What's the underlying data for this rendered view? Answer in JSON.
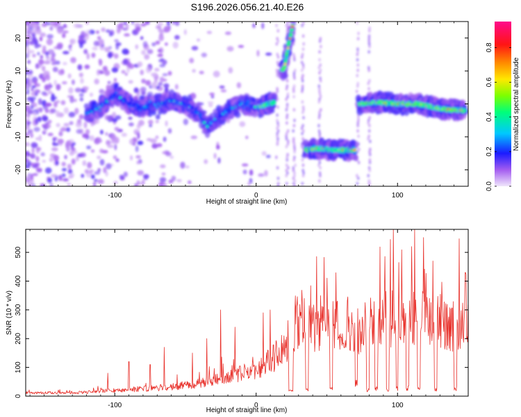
{
  "title": "S196.2026.056.21.40.E26",
  "chart_data": [
    {
      "type": "heatmap",
      "name": "spectrogram",
      "xlabel": "Height of straight line (km)",
      "ylabel": "Frequency (Hz)",
      "xlim": [
        -163,
        150
      ],
      "ylim": [
        -25,
        25
      ],
      "xticks": [
        -100,
        0,
        100
      ],
      "yticks": [
        -20,
        -10,
        0,
        10,
        20
      ],
      "colorbar": {
        "label": "Normalized spectral amplitude",
        "range": [
          0.0,
          0.95
        ],
        "ticks": [
          0.0,
          0.2,
          0.4,
          0.6,
          0.8
        ],
        "tick_labels": [
          "0.0",
          "0.2",
          "0.4",
          "0.6",
          "0.8"
        ],
        "colormap": "rainbow",
        "low_color": "#f0e6fb",
        "high_color": "#ff0a8c"
      },
      "ridges": [
        {
          "x": [
            -120,
            -110,
            -100,
            -90,
            -80,
            -70,
            -60,
            -50,
            -40,
            -35,
            -30,
            -20,
            -10,
            0
          ],
          "freq": [
            -3,
            -1,
            3,
            0,
            -1,
            0,
            1,
            0,
            -3,
            -7,
            -5,
            -2,
            0,
            -1
          ],
          "peak": 0.42
        },
        {
          "x": [
            2,
            8,
            13
          ],
          "freq": [
            -1,
            0,
            0.5
          ],
          "peak": 0.8
        },
        {
          "x": [
            18,
            20,
            23,
            26
          ],
          "freq": [
            10,
            11,
            18,
            24
          ],
          "peak": 0.9
        },
        {
          "x": [
            35,
            45,
            55,
            70
          ],
          "freq": [
            -14,
            -13.5,
            -14,
            -14
          ],
          "peak": 0.82
        },
        {
          "x": [
            73,
            85,
            100,
            115,
            130,
            148
          ],
          "freq": [
            0,
            0.5,
            0,
            0,
            -1.5,
            -2
          ],
          "peak": 0.9
        }
      ],
      "vertical_streaks_x": [
        15,
        22,
        27,
        33,
        45,
        72,
        80
      ],
      "noise_region_x": [
        -163,
        -60
      ]
    },
    {
      "type": "line",
      "name": "snr",
      "xlabel": "Height of straight line (km)",
      "ylabel": "SNR (10 * v/v)",
      "xlim": [
        -163,
        150
      ],
      "ylim": [
        0,
        580
      ],
      "xticks": [
        -100,
        0,
        100
      ],
      "yticks": [
        0,
        100,
        200,
        300,
        400,
        500
      ],
      "color": "#e8302a",
      "sample_step_km": 0.35,
      "envelope": {
        "x": [
          -163,
          -120,
          -100,
          -80,
          -60,
          -40,
          -20,
          0,
          10,
          20,
          25,
          30,
          40,
          60,
          70,
          75,
          80,
          100,
          120,
          140,
          150
        ],
        "y": [
          15,
          18,
          28,
          35,
          45,
          60,
          90,
          130,
          170,
          230,
          300,
          360,
          330,
          380,
          330,
          310,
          350,
          380,
          360,
          340,
          360
        ]
      },
      "spikes": [
        {
          "x": -105,
          "y": 80
        },
        {
          "x": -90,
          "y": 120
        },
        {
          "x": -75,
          "y": 110
        },
        {
          "x": -65,
          "y": 170
        },
        {
          "x": -45,
          "y": 150
        },
        {
          "x": -35,
          "y": 200
        },
        {
          "x": -25,
          "y": 300
        },
        {
          "x": -15,
          "y": 240
        },
        {
          "x": 5,
          "y": 290
        },
        {
          "x": 10,
          "y": 300
        },
        {
          "x": 25,
          "y": 440
        },
        {
          "x": 35,
          "y": 530
        },
        {
          "x": 60,
          "y": 510
        },
        {
          "x": 80,
          "y": 530
        },
        {
          "x": 95,
          "y": 545
        },
        {
          "x": 97,
          "y": 580
        },
        {
          "x": 110,
          "y": 520
        },
        {
          "x": 112,
          "y": 580
        },
        {
          "x": 125,
          "y": 470
        },
        {
          "x": 148,
          "y": 430
        }
      ],
      "dropouts": [
        {
          "x0": 23,
          "x1": 26,
          "y": 20
        },
        {
          "x0": 35,
          "x1": 37,
          "y": 25
        },
        {
          "x0": 52,
          "x1": 54,
          "y": 30
        },
        {
          "x0": 70,
          "x1": 71.5,
          "y": 50
        },
        {
          "x0": 78,
          "x1": 80,
          "y": 25
        },
        {
          "x0": 84,
          "x1": 86,
          "y": 30
        },
        {
          "x0": 92,
          "x1": 94,
          "y": 25
        },
        {
          "x0": 99,
          "x1": 100.5,
          "y": 30
        },
        {
          "x0": 106,
          "x1": 108,
          "y": 30
        },
        {
          "x0": 114,
          "x1": 116,
          "y": 35
        },
        {
          "x0": 126,
          "x1": 128,
          "y": 25
        },
        {
          "x0": 140,
          "x1": 142,
          "y": 30
        }
      ],
      "dip": {
        "x0": 58,
        "x1": 64,
        "y": 160
      }
    }
  ]
}
